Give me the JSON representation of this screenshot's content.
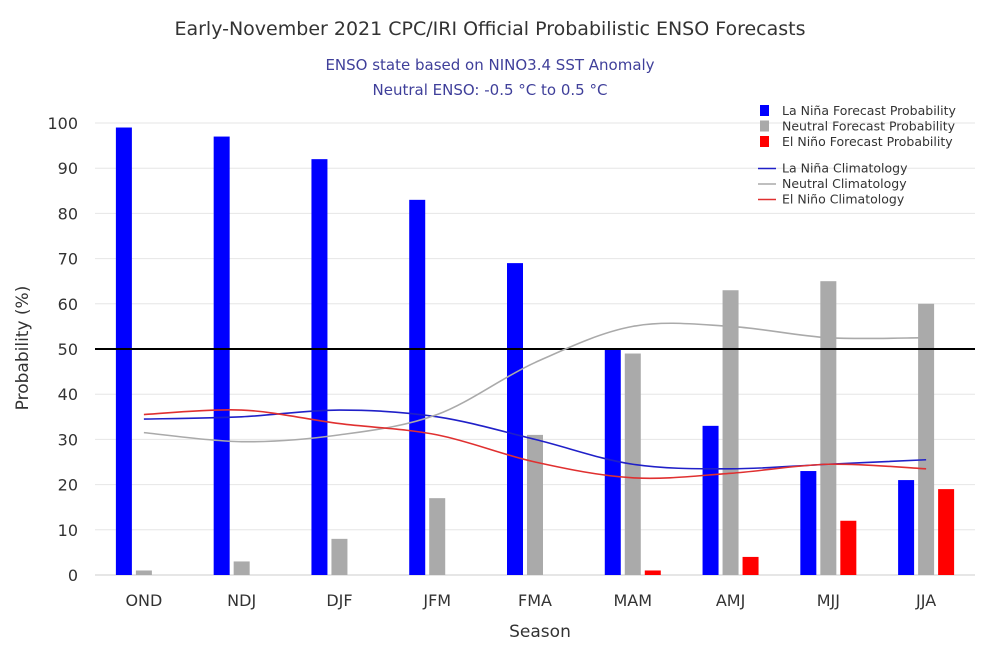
{
  "chart_data": {
    "type": "bar",
    "title": "Early-November 2021 CPC/IRI Official Probabilistic ENSO Forecasts",
    "subtitle_lines": [
      "ENSO state based on NINO3.4 SST Anomaly",
      "Neutral ENSO: -0.5 °C to 0.5 °C"
    ],
    "xlabel": "Season",
    "ylabel": "Probability (%)",
    "ylim": [
      0,
      100
    ],
    "yticks": [
      0,
      10,
      20,
      30,
      40,
      50,
      60,
      70,
      80,
      90,
      100
    ],
    "reference_line": 50,
    "grid": true,
    "legend_position": "top-right",
    "categories": [
      "OND",
      "NDJ",
      "DJF",
      "JFM",
      "FMA",
      "MAM",
      "AMJ",
      "MJJ",
      "JJA"
    ],
    "series": [
      {
        "name": "La Niña Forecast Probability",
        "kind": "bar",
        "color": "#0000ff",
        "values": [
          99,
          97,
          92,
          83,
          69,
          50,
          33,
          23,
          21
        ]
      },
      {
        "name": "Neutral Forecast Probability",
        "kind": "bar",
        "color": "#aaaaaa",
        "values": [
          1,
          3,
          8,
          17,
          31,
          49,
          63,
          65,
          60
        ]
      },
      {
        "name": "El Niño Forecast Probability",
        "kind": "bar",
        "color": "#ff0000",
        "values": [
          0,
          0,
          0,
          0,
          0,
          1,
          4,
          12,
          19
        ]
      },
      {
        "name": "La Niña Climatology",
        "kind": "line",
        "color": "#2020c8",
        "values": [
          34.5,
          35,
          36.5,
          35,
          30,
          24.5,
          23.5,
          24.5,
          25.5
        ]
      },
      {
        "name": "Neutral Climatology",
        "kind": "line",
        "color": "#aaaaaa",
        "values": [
          31.5,
          29.5,
          31,
          35.5,
          47,
          55,
          55,
          52.5,
          52.5
        ]
      },
      {
        "name": "El Niño Climatology",
        "kind": "line",
        "color": "#e03030",
        "values": [
          35.5,
          36.5,
          33.5,
          31,
          25,
          21.5,
          22.5,
          24.5,
          23.5
        ]
      }
    ]
  }
}
